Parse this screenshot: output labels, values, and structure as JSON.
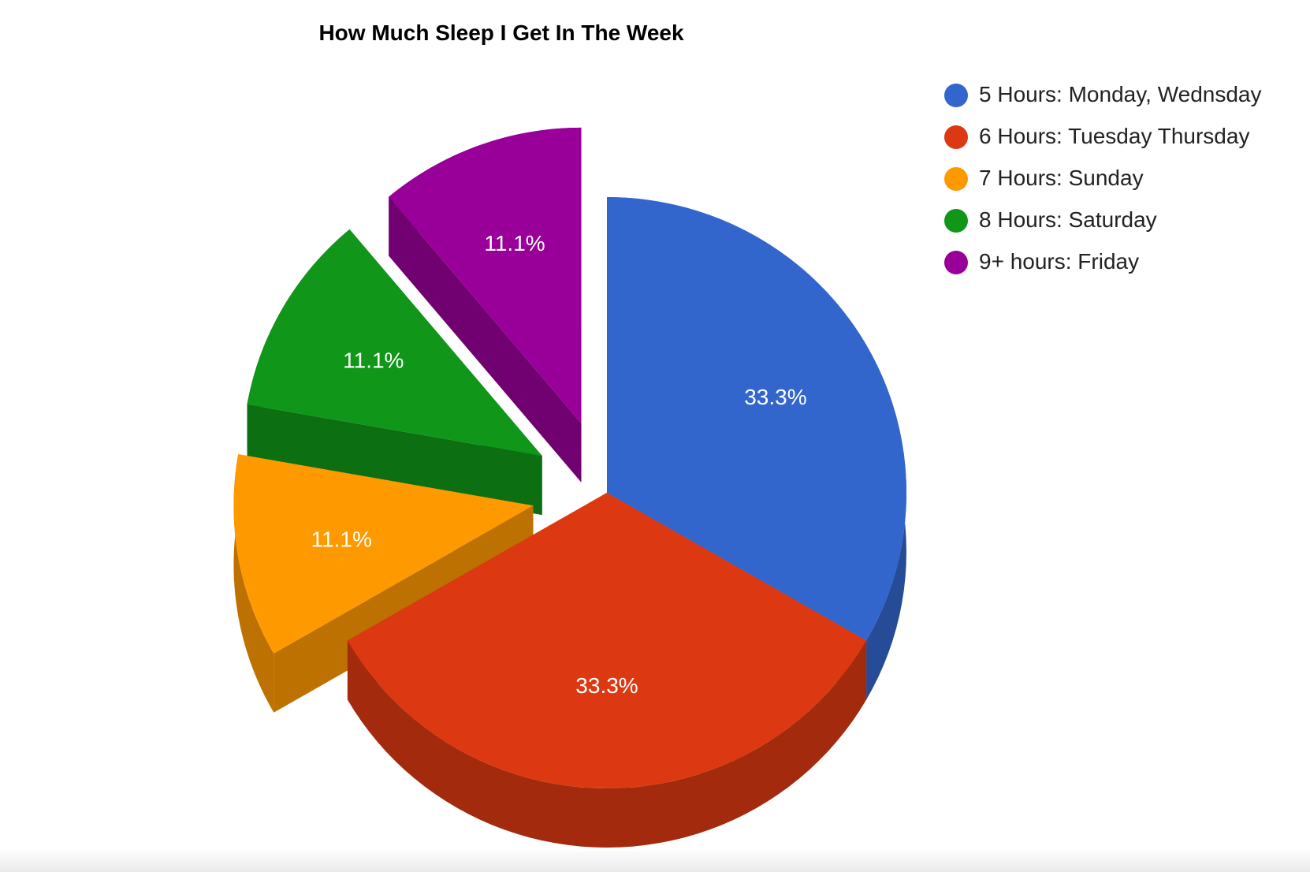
{
  "chart_data": {
    "type": "pie",
    "title": "How Much Sleep I Get In The Week",
    "is_3d": true,
    "exploded": true,
    "legend_position": "right",
    "categories": [
      "5 Hours: Monday, Wednsday",
      "6 Hours: Tuesday Thursday",
      "7 Hours: Sunday",
      "8 Hours: Saturday",
      "9+ hours: Friday"
    ],
    "values": [
      3,
      3,
      1,
      1,
      1
    ],
    "data_labels": [
      "33.3%",
      "33.3%",
      "11.1%",
      "11.1%",
      "11.1%"
    ],
    "colors": [
      "#3366cc",
      "#dc3912",
      "#ff9900",
      "#109618",
      "#990099"
    ]
  }
}
